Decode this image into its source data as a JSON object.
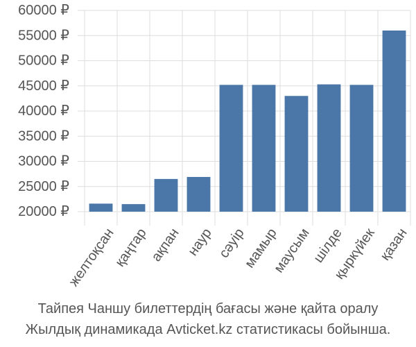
{
  "chart_data": {
    "type": "bar",
    "categories": [
      "желтоқсан",
      "қаңтар",
      "ақпан",
      "наур",
      "сәуір",
      "мамыр",
      "маусым",
      "шілде",
      "қыркүйек",
      "қазан"
    ],
    "values": [
      21600,
      21500,
      26500,
      26900,
      45200,
      45200,
      43000,
      45300,
      45200,
      56000
    ],
    "ylim": [
      20000,
      60000
    ],
    "yticks": [
      20000,
      25000,
      30000,
      35000,
      40000,
      45000,
      50000,
      55000,
      60000
    ],
    "ytick_labels": [
      "20000 ₽",
      "25000 ₽",
      "30000 ₽",
      "35000 ₽",
      "40000 ₽",
      "45000 ₽",
      "50000 ₽",
      "55000 ₽",
      "60000 ₽"
    ],
    "grid": true,
    "bar_color": "#4a76a8",
    "grid_color": "#dddddd"
  },
  "caption": {
    "line1": "Тайпея Чаншу билеттердің бағасы және қайта оралу",
    "line2": "Жылдық динамикада Avticket.kz статистикасы бойынша."
  }
}
